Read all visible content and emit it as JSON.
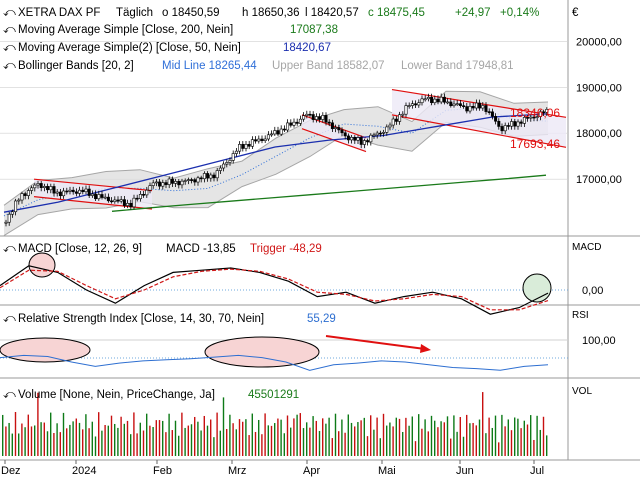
{
  "colors": {
    "candle": "#000000",
    "ma200": "#1a7a1a",
    "ma50": "#1b2fae",
    "bb_mid": "#2f6fd8",
    "bb_band": "#a6a6a6",
    "bb_fill": "#dcdcdc",
    "channel": "#e01010",
    "channel_fill": "#ece8f6",
    "macd": "#000000",
    "trigger": "#d01818",
    "rsi": "#2e6fd1",
    "ellipse_fill": "#f7d4d4",
    "ellipse_green": "#d9ecd9",
    "vol_up": "#0d7a17",
    "vol_down": "#c81010",
    "grid": "#d0d0d0",
    "ref_line": "#6fa8dc"
  },
  "price_panel": {
    "icon": "settings-icon",
    "row1": {
      "name": "XETRA DAX PF",
      "interval": "Täglich",
      "open": "o 18450,59",
      "high": "h 18650,36",
      "low": "l 18420,57",
      "close": "c 18475,45",
      "change": "+24,97",
      "change_pct": "+0,14%"
    },
    "row2": {
      "label": "Moving Average Simple [Close, 200, Nein]",
      "value": "17087,38"
    },
    "row3": {
      "label": "Moving Average Simple(2) [Close, 50, Nein]",
      "value": "18420,67"
    },
    "row4": {
      "label": "Bollinger Bands [20, 2]",
      "mid": "Mid Line 18265,44",
      "upper": "Upper Band 18582,07",
      "lower": "Lower Band 17948,81"
    },
    "currency_label": "€",
    "channel_upper_label": "18346,06",
    "channel_lower_label": "17693,46"
  },
  "macd_panel": {
    "label": "MACD [Close, 12, 26, 9]",
    "value": "MACD -13,85",
    "trigger": "Trigger -48,29",
    "axis_label": "MACD",
    "tick": "0,00"
  },
  "rsi_panel": {
    "label": "Relative Strength Index [Close, 14, 30, 70, Nein]",
    "value": "55,29",
    "axis_label": "RSI",
    "tick": "100,00"
  },
  "volume_panel": {
    "label": "Volume [None, Nein, PriceChange, Ja]",
    "value": "45501291",
    "axis_label": "VOL"
  },
  "x_axis": {
    "labels": [
      "Dez",
      "2024",
      "Feb",
      "Mrz",
      "Apr",
      "Mai",
      "Jun",
      "Jul"
    ]
  },
  "chart_data": {
    "type": "candlestick",
    "title": "XETRA DAX PF",
    "y_ticks": [
      17000,
      18000,
      19000,
      20000
    ],
    "y_tick_labels": [
      "17000,00",
      "18000,00",
      "19000,00",
      "20000,00"
    ],
    "ylim": [
      15850,
      20900
    ],
    "points": [
      {
        "x": "2023-11-27",
        "y": 16050
      },
      {
        "x": "2023-12-04",
        "y": 16650
      },
      {
        "x": "2023-12-11",
        "y": 16900
      },
      {
        "x": "2023-12-18",
        "y": 16700
      },
      {
        "x": "2023-12-28",
        "y": 16750
      },
      {
        "x": "2024-01-05",
        "y": 16600
      },
      {
        "x": "2024-01-17",
        "y": 16450
      },
      {
        "x": "2024-01-26",
        "y": 16900
      },
      {
        "x": "2024-02-08",
        "y": 16950
      },
      {
        "x": "2024-02-20",
        "y": 17100
      },
      {
        "x": "2024-03-01",
        "y": 17700
      },
      {
        "x": "2024-03-11",
        "y": 17900
      },
      {
        "x": "2024-03-22",
        "y": 18200
      },
      {
        "x": "2024-03-28",
        "y": 18400
      },
      {
        "x": "2024-04-04",
        "y": 18300
      },
      {
        "x": "2024-04-12",
        "y": 17950
      },
      {
        "x": "2024-04-19",
        "y": 17800
      },
      {
        "x": "2024-04-29",
        "y": 18100
      },
      {
        "x": "2024-05-08",
        "y": 18600
      },
      {
        "x": "2024-05-15",
        "y": 18750
      },
      {
        "x": "2024-05-22",
        "y": 18700
      },
      {
        "x": "2024-05-31",
        "y": 18550
      },
      {
        "x": "2024-06-07",
        "y": 18600
      },
      {
        "x": "2024-06-14",
        "y": 18100
      },
      {
        "x": "2024-06-24",
        "y": 18300
      },
      {
        "x": "2024-07-01",
        "y": 18450
      },
      {
        "x": "2024-07-03",
        "y": 18475
      }
    ],
    "ma200": [
      16300,
      16380,
      16450,
      16520,
      16590,
      16660,
      16730,
      16800,
      16870,
      16940,
      17010,
      17087
    ],
    "ma50": [
      16280,
      16500,
      16800,
      17100,
      17400,
      17700,
      17850,
      17950,
      18150,
      18350,
      18420
    ],
    "bollinger": {
      "mid": 18265.44,
      "upper": 18582.07,
      "lower": 17948.81,
      "mid_series": [
        16200,
        16550,
        16700,
        16800,
        16800,
        16750,
        16800,
        17100,
        17500,
        17900,
        18200,
        18150,
        18000,
        18500,
        18550,
        18300,
        18265
      ]
    },
    "channels": [
      {
        "upper_start": 17000,
        "upper_end": 16750,
        "lower_start": 16620,
        "lower_end": 16350
      },
      {
        "upper_start": 18400,
        "upper_end": 17900,
        "lower_start": 18100,
        "lower_end": 17600
      },
      {
        "upper_start": 18950,
        "upper_end": 18346.06,
        "lower_start": 18400,
        "lower_end": 17693.46
      }
    ],
    "macd": {
      "macd": -13.85,
      "trigger": -48.29,
      "macd_series": [
        20,
        110,
        80,
        0,
        -60,
        20,
        80,
        90,
        100,
        80,
        40,
        -30,
        -10,
        -60,
        -30,
        -10,
        -40,
        -110,
        -80,
        -14
      ],
      "trigger_series": [
        10,
        90,
        85,
        20,
        -40,
        0,
        60,
        85,
        95,
        85,
        50,
        -10,
        -20,
        -50,
        -40,
        -20,
        -30,
        -90,
        -90,
        -48
      ]
    },
    "rsi": {
      "value": 55.29,
      "series": [
        68,
        72,
        70,
        60,
        52,
        58,
        62,
        64,
        66,
        69,
        72,
        68,
        60,
        45,
        55,
        58,
        62,
        60,
        55,
        50,
        48,
        45,
        52,
        55
      ]
    },
    "volume": {
      "last": 45501291
    }
  }
}
